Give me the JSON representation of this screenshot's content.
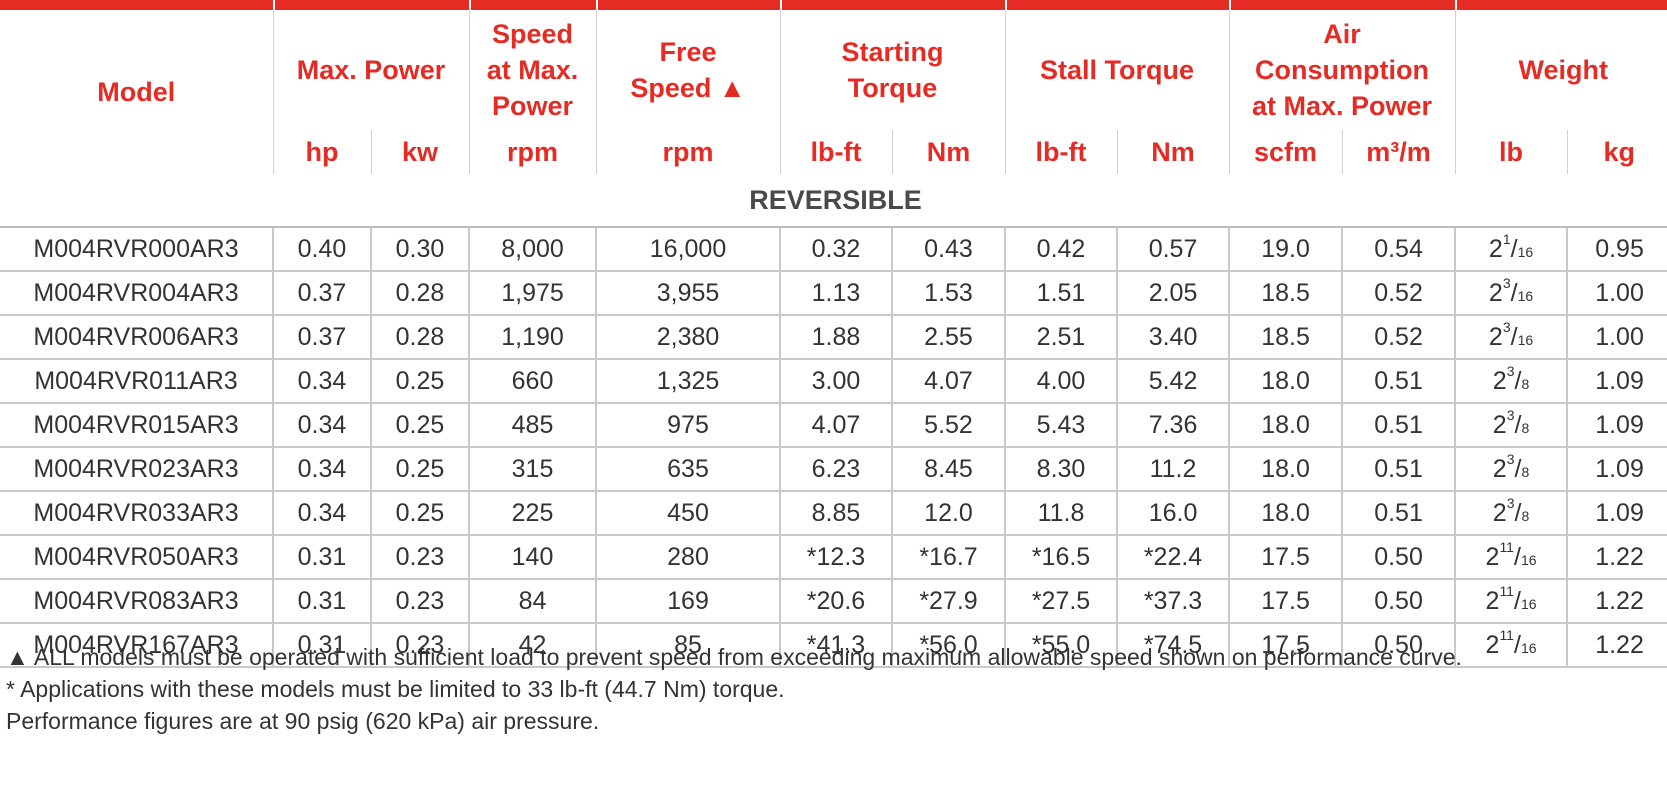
{
  "headers": {
    "model": [
      "Model"
    ],
    "max_power": [
      "Max. Power"
    ],
    "speed_max_power": [
      "Speed",
      "at Max.",
      "Power"
    ],
    "free_speed": [
      "Free",
      "Speed ▲"
    ],
    "starting_torque": [
      "Starting",
      "Torque"
    ],
    "stall_torque": [
      "Stall Torque"
    ],
    "air_consumption": [
      "Air",
      "Consumption",
      "at Max. Power"
    ],
    "weight": [
      "Weight"
    ]
  },
  "units": [
    "hp",
    "kw",
    "rpm",
    "rpm",
    "lb-ft",
    "Nm",
    "lb-ft",
    "Nm",
    "scfm",
    "m³/m",
    "lb",
    "kg"
  ],
  "section_label": "REVERSIBLE",
  "rows": [
    {
      "model": "M004RVR000AR3",
      "hp": "0.40",
      "kw": "0.30",
      "speed": "8,000",
      "free": "16,000",
      "st_lbft": "0.32",
      "st_nm": "0.43",
      "sl_lbft": "0.42",
      "sl_nm": "0.57",
      "scfm": "19.0",
      "m3m": "0.54",
      "lb_whole": "2",
      "lb_num": "1",
      "lb_den": "16",
      "kg": "0.95"
    },
    {
      "model": "M004RVR004AR3",
      "hp": "0.37",
      "kw": "0.28",
      "speed": "1,975",
      "free": "3,955",
      "st_lbft": "1.13",
      "st_nm": "1.53",
      "sl_lbft": "1.51",
      "sl_nm": "2.05",
      "scfm": "18.5",
      "m3m": "0.52",
      "lb_whole": "2",
      "lb_num": "3",
      "lb_den": "16",
      "kg": "1.00"
    },
    {
      "model": "M004RVR006AR3",
      "hp": "0.37",
      "kw": "0.28",
      "speed": "1,190",
      "free": "2,380",
      "st_lbft": "1.88",
      "st_nm": "2.55",
      "sl_lbft": "2.51",
      "sl_nm": "3.40",
      "scfm": "18.5",
      "m3m": "0.52",
      "lb_whole": "2",
      "lb_num": "3",
      "lb_den": "16",
      "kg": "1.00"
    },
    {
      "model": "M004RVR011AR3",
      "hp": "0.34",
      "kw": "0.25",
      "speed": "660",
      "free": "1,325",
      "st_lbft": "3.00",
      "st_nm": "4.07",
      "sl_lbft": "4.00",
      "sl_nm": "5.42",
      "scfm": "18.0",
      "m3m": "0.51",
      "lb_whole": "2",
      "lb_num": "3",
      "lb_den": "8",
      "kg": "1.09"
    },
    {
      "model": "M004RVR015AR3",
      "hp": "0.34",
      "kw": "0.25",
      "speed": "485",
      "free": "975",
      "st_lbft": "4.07",
      "st_nm": "5.52",
      "sl_lbft": "5.43",
      "sl_nm": "7.36",
      "scfm": "18.0",
      "m3m": "0.51",
      "lb_whole": "2",
      "lb_num": "3",
      "lb_den": "8",
      "kg": "1.09"
    },
    {
      "model": "M004RVR023AR3",
      "hp": "0.34",
      "kw": "0.25",
      "speed": "315",
      "free": "635",
      "st_lbft": "6.23",
      "st_nm": "8.45",
      "sl_lbft": "8.30",
      "sl_nm": "11.2",
      "scfm": "18.0",
      "m3m": "0.51",
      "lb_whole": "2",
      "lb_num": "3",
      "lb_den": "8",
      "kg": "1.09"
    },
    {
      "model": "M004RVR033AR3",
      "hp": "0.34",
      "kw": "0.25",
      "speed": "225",
      "free": "450",
      "st_lbft": "8.85",
      "st_nm": "12.0",
      "sl_lbft": "11.8",
      "sl_nm": "16.0",
      "scfm": "18.0",
      "m3m": "0.51",
      "lb_whole": "2",
      "lb_num": "3",
      "lb_den": "8",
      "kg": "1.09"
    },
    {
      "model": "M004RVR050AR3",
      "hp": "0.31",
      "kw": "0.23",
      "speed": "140",
      "free": "280",
      "st_lbft": "*12.3",
      "st_nm": "*16.7",
      "sl_lbft": "*16.5",
      "sl_nm": "*22.4",
      "scfm": "17.5",
      "m3m": "0.50",
      "lb_whole": "2",
      "lb_num": "11",
      "lb_den": "16",
      "kg": "1.22"
    },
    {
      "model": "M004RVR083AR3",
      "hp": "0.31",
      "kw": "0.23",
      "speed": "84",
      "free": "169",
      "st_lbft": "*20.6",
      "st_nm": "*27.9",
      "sl_lbft": "*27.5",
      "sl_nm": "*37.3",
      "scfm": "17.5",
      "m3m": "0.50",
      "lb_whole": "2",
      "lb_num": "11",
      "lb_den": "16",
      "kg": "1.22"
    },
    {
      "model": "M004RVR167AR3",
      "hp": "0.31",
      "kw": "0.23",
      "speed": "42",
      "free": "85",
      "st_lbft": "*41.3",
      "st_nm": "*56.0",
      "sl_lbft": "*55.0",
      "sl_nm": "*74.5",
      "scfm": "17.5",
      "m3m": "0.50",
      "lb_whole": "2",
      "lb_num": "11",
      "lb_den": "16",
      "kg": "1.22"
    }
  ],
  "notes": [
    "▲ ALL models must be operated with sufficient load to prevent speed from exceeding maximum allowable speed shown on performance curve.",
    "* Applications with these models must be limited to 33 lb-ft (44.7 Nm) torque.",
    "Performance figures are at 90 psig (620 kPa) air pressure."
  ],
  "colors": {
    "accent": "#e42b24",
    "text": "#333333",
    "section": "#4a4a4a",
    "rule": "#c9c9c9"
  }
}
